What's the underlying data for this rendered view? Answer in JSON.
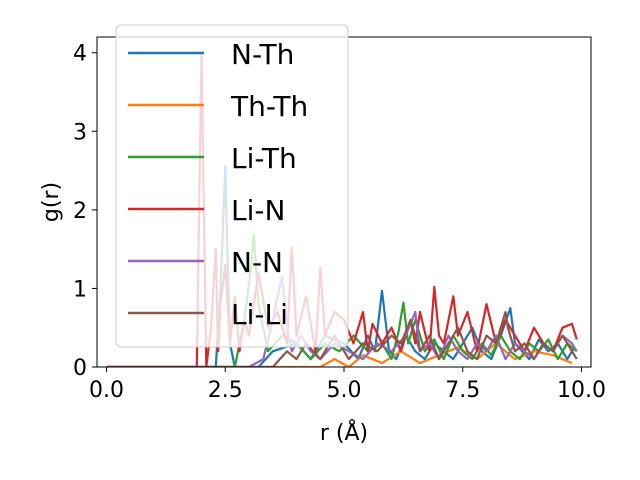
{
  "chart_data": {
    "type": "line",
    "title": "",
    "xlabel": "r (Å)",
    "ylabel": "g(r)",
    "xlim": [
      -0.2,
      10.2
    ],
    "ylim": [
      0,
      4.2
    ],
    "xticks": [
      0.0,
      2.5,
      5.0,
      7.5,
      10.0
    ],
    "xtick_labels": [
      "0.0",
      "2.5",
      "5.0",
      "7.5",
      "10.0"
    ],
    "yticks": [
      0,
      1,
      2,
      3,
      4
    ],
    "ytick_labels": [
      "0",
      "1",
      "2",
      "3",
      "4"
    ],
    "grid": false,
    "legend_position": "top-left",
    "series": [
      {
        "name": "N-Th",
        "color": "#1f77b4",
        "x": [
          0,
          1.0,
          2.0,
          2.3,
          2.4,
          2.5,
          2.55,
          2.6,
          2.7,
          2.9,
          3.2,
          3.5,
          4.0,
          4.3,
          4.6,
          5.0,
          5.3,
          5.5,
          5.65,
          5.8,
          5.95,
          6.1,
          6.3,
          6.5,
          6.7,
          6.9,
          7.1,
          7.3,
          7.5,
          7.7,
          7.9,
          8.1,
          8.3,
          8.5,
          8.6,
          8.75,
          8.9,
          9.1,
          9.3,
          9.5,
          9.7,
          9.85
        ],
        "y": [
          0,
          0,
          0,
          0,
          1.0,
          2.55,
          1.4,
          0.3,
          0,
          0,
          0,
          0.2,
          0.3,
          0.1,
          0.4,
          0.3,
          0.1,
          0.4,
          0.2,
          0.97,
          0.2,
          0.1,
          0.4,
          0.2,
          0.1,
          0.3,
          0.2,
          0.1,
          0.3,
          0.5,
          0.2,
          0.1,
          0.4,
          0.75,
          0.3,
          0.2,
          0.1,
          0.35,
          0.2,
          0.3,
          0.1,
          0.25
        ]
      },
      {
        "name": "Th-Th",
        "color": "#ff7f0e",
        "x": [
          0,
          2.0,
          4.0,
          4.5,
          4.8,
          5.1,
          5.4,
          5.8,
          6.2,
          6.6,
          7.0,
          7.4,
          7.8,
          8.2,
          8.6,
          9.0,
          9.4,
          9.8
        ],
        "y": [
          0,
          0,
          0,
          0,
          0.1,
          0,
          0.15,
          0.05,
          0.2,
          0.05,
          0.15,
          0.25,
          0.1,
          0.3,
          0.1,
          0.2,
          0.15,
          0.05
        ]
      },
      {
        "name": "Li-Th",
        "color": "#2ca02c",
        "x": [
          0,
          2.0,
          2.7,
          2.9,
          3.05,
          3.1,
          3.2,
          3.4,
          3.7,
          4.0,
          4.3,
          4.6,
          4.9,
          5.2,
          5.5,
          5.8,
          6.0,
          6.15,
          6.25,
          6.35,
          6.5,
          6.7,
          6.9,
          7.1,
          7.3,
          7.5,
          7.7,
          7.9,
          8.1,
          8.3,
          8.5,
          8.7,
          8.9,
          9.1,
          9.3,
          9.5,
          9.7,
          9.9
        ],
        "y": [
          0,
          0,
          0,
          0.6,
          1.3,
          1.68,
          0.8,
          0.2,
          0.4,
          0.3,
          0.1,
          0.3,
          0.2,
          0.4,
          0.2,
          0.3,
          0.1,
          0.45,
          0.82,
          0.3,
          0.6,
          0.2,
          0.35,
          0.1,
          0.4,
          0.2,
          0.1,
          0.3,
          0.15,
          0.4,
          0.2,
          0.1,
          0.3,
          0.2,
          0.35,
          0.1,
          0.3,
          0.2
        ]
      },
      {
        "name": "Li-N",
        "color": "#d62728",
        "x": [
          0,
          1.8,
          1.9,
          1.95,
          2.0,
          2.05,
          2.1,
          2.2,
          2.3,
          2.35,
          2.4,
          2.5,
          2.6,
          2.7,
          2.8,
          2.9,
          3.0,
          3.2,
          3.4,
          3.6,
          3.8,
          3.9,
          4.0,
          4.2,
          4.4,
          4.5,
          4.6,
          4.8,
          5.0,
          5.2,
          5.4,
          5.5,
          5.6,
          5.8,
          6.0,
          6.2,
          6.4,
          6.5,
          6.6,
          6.8,
          6.9,
          7.0,
          7.1,
          7.3,
          7.4,
          7.6,
          7.8,
          8.0,
          8.2,
          8.4,
          8.6,
          8.8,
          9.0,
          9.2,
          9.4,
          9.6,
          9.8,
          9.9
        ],
        "y": [
          0,
          0,
          0,
          2.0,
          3.97,
          2.0,
          0,
          0.5,
          1.5,
          0.2,
          0.8,
          1.3,
          0.3,
          0.9,
          0.2,
          0.6,
          0.4,
          1.2,
          0.5,
          0.7,
          0.3,
          1.52,
          0.4,
          0.9,
          0.2,
          1.27,
          0.4,
          0.7,
          0.6,
          0.3,
          0.7,
          0.2,
          0.55,
          0.3,
          0.5,
          0.2,
          0.6,
          0.3,
          0.7,
          0.2,
          1.02,
          0.4,
          0.3,
          0.9,
          0.4,
          0.7,
          0.2,
          0.8,
          0.3,
          0.6,
          0.4,
          0.2,
          0.5,
          0.3,
          0.2,
          0.5,
          0.55,
          0.35
        ]
      },
      {
        "name": "N-N",
        "color": "#9467bd",
        "x": [
          0,
          2.0,
          3.0,
          3.3,
          3.5,
          3.6,
          3.7,
          3.8,
          3.9,
          4.1,
          4.3,
          4.5,
          4.8,
          5.1,
          5.4,
          5.7,
          6.0,
          6.3,
          6.5,
          6.6,
          6.8,
          7.0,
          7.2,
          7.4,
          7.6,
          7.8,
          8.0,
          8.2,
          8.4,
          8.6,
          8.8,
          9.0,
          9.2,
          9.4,
          9.6,
          9.8,
          9.9
        ],
        "y": [
          0,
          0,
          0,
          0.1,
          0.6,
          0.9,
          1.15,
          0.5,
          0.2,
          0.4,
          0.2,
          0.1,
          0.3,
          0.2,
          0.1,
          0.3,
          0.2,
          0.4,
          0.7,
          0.2,
          0.3,
          0.1,
          0.4,
          0.2,
          0.1,
          0.3,
          0.2,
          0.4,
          0.1,
          0.3,
          0.2,
          0.1,
          0.3,
          0.2,
          0.4,
          0.3,
          0.2
        ]
      },
      {
        "name": "Li-Li",
        "color": "#8c564b",
        "x": [
          0,
          2.0,
          3.0,
          3.5,
          3.8,
          4.0,
          4.2,
          4.5,
          4.8,
          5.1,
          5.4,
          5.7,
          6.0,
          6.2,
          6.4,
          6.6,
          6.8,
          7.0,
          7.2,
          7.4,
          7.6,
          7.8,
          8.0,
          8.2,
          8.4,
          8.45,
          8.6,
          8.8,
          9.0,
          9.2,
          9.4,
          9.6,
          9.8,
          9.9
        ],
        "y": [
          0,
          0,
          0,
          0,
          0.2,
          0.1,
          0.3,
          0.1,
          0.4,
          0.1,
          0.3,
          0.2,
          0.4,
          0.3,
          0.6,
          0.2,
          0.4,
          0.1,
          0.3,
          0.5,
          0.2,
          0.1,
          0.4,
          0.3,
          0.7,
          0.5,
          0.2,
          0.3,
          0.1,
          0.3,
          0.2,
          0.4,
          0.2,
          0.1
        ]
      }
    ]
  }
}
